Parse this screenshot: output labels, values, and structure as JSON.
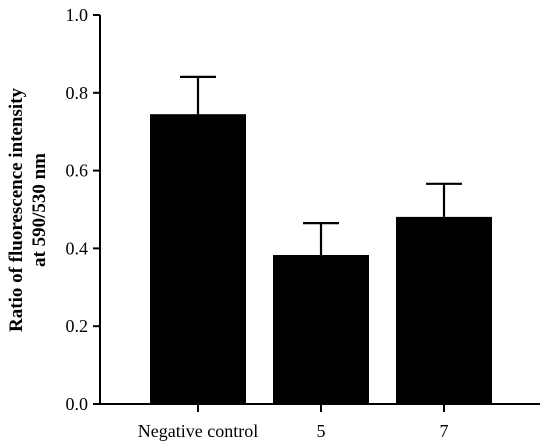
{
  "chart_data": {
    "type": "bar",
    "title": "",
    "xlabel": "",
    "ylabel_lines": [
      "Ratio of fluorescence intensity",
      "at 590/530 nm"
    ],
    "categories": [
      "Negative control",
      "5",
      "7"
    ],
    "values": [
      0.745,
      0.383,
      0.481
    ],
    "error_plus": [
      0.096,
      0.082,
      0.085
    ],
    "ylim": [
      0,
      1.0
    ],
    "yticks": [
      "0.0",
      "0.2",
      "0.4",
      "0.6",
      "0.8",
      "1.0"
    ],
    "bar_color": "#000000",
    "grid": false,
    "legend": "none"
  }
}
